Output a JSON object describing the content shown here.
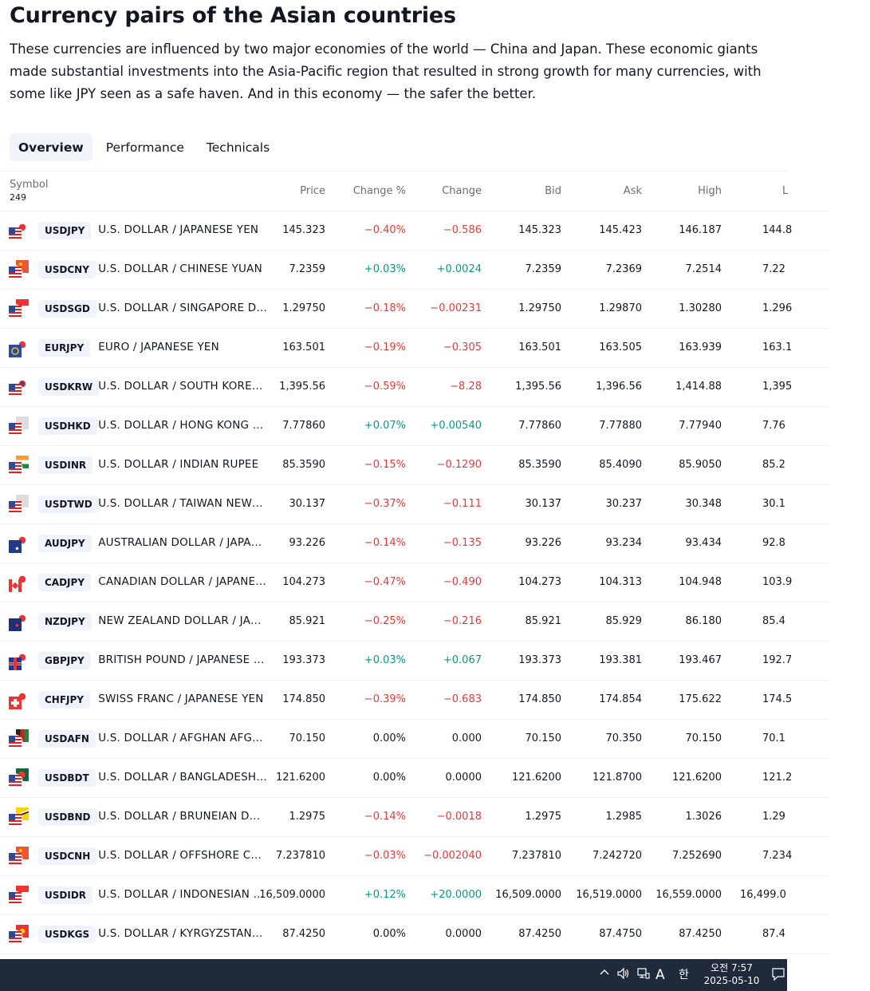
{
  "page": {
    "title": "Currency pairs of the Asian countries",
    "intro": "These currencies are influenced by two major economies of the world — China and Japan. These economic giants made substantial investments into the Asia-Pacific region that resulted in strong growth for many currencies, with some like JPY seen as a safe haven. And in this economy — the safer the better."
  },
  "tabs": [
    {
      "label": "Overview",
      "active": true
    },
    {
      "label": "Performance",
      "active": false
    },
    {
      "label": "Technicals",
      "active": false
    }
  ],
  "table": {
    "headers": {
      "symbol": "Symbol",
      "count": "249",
      "price": "Price",
      "change_pct": "Change %",
      "change": "Change",
      "bid": "Bid",
      "ask": "Ask",
      "high": "High",
      "low": "L"
    },
    "rows": [
      {
        "ticker": "USDJPY",
        "name": "U.S. DOLLAR / JAPANESE YEN",
        "price": "145.323",
        "change_pct": "−0.40%",
        "change": "−0.586",
        "bid": "145.323",
        "ask": "145.423",
        "high": "146.187",
        "low": "144.8",
        "dir": "neg",
        "flag_base": "us",
        "flag_quote": "jp"
      },
      {
        "ticker": "USDCNY",
        "name": "U.S. DOLLAR / CHINESE YUAN",
        "price": "7.2359",
        "change_pct": "+0.03%",
        "change": "+0.0024",
        "bid": "7.2359",
        "ask": "7.2369",
        "high": "7.2514",
        "low": "7.22",
        "dir": "pos",
        "flag_base": "us",
        "flag_quote": "cn"
      },
      {
        "ticker": "USDSGD",
        "name": "U.S. DOLLAR / SINGAPORE D…",
        "price": "1.29750",
        "change_pct": "−0.18%",
        "change": "−0.00231",
        "bid": "1.29750",
        "ask": "1.29870",
        "high": "1.30280",
        "low": "1.296",
        "dir": "neg",
        "flag_base": "us",
        "flag_quote": "sg"
      },
      {
        "ticker": "EURJPY",
        "name": "EURO / JAPANESE YEN",
        "price": "163.501",
        "change_pct": "−0.19%",
        "change": "−0.305",
        "bid": "163.501",
        "ask": "163.505",
        "high": "163.939",
        "low": "163.1",
        "dir": "neg",
        "flag_base": "eu",
        "flag_quote": "jp"
      },
      {
        "ticker": "USDKRW",
        "name": "U.S. DOLLAR / SOUTH KORE…",
        "price": "1,395.56",
        "change_pct": "−0.59%",
        "change": "−8.28",
        "bid": "1,395.56",
        "ask": "1,396.56",
        "high": "1,414.88",
        "low": "1,395",
        "dir": "neg",
        "flag_base": "us",
        "flag_quote": "kr"
      },
      {
        "ticker": "USDHKD",
        "name": "U.S. DOLLAR / HONG KONG …",
        "price": "7.77860",
        "change_pct": "+0.07%",
        "change": "+0.00540",
        "bid": "7.77860",
        "ask": "7.77880",
        "high": "7.77940",
        "low": "7.76",
        "dir": "pos",
        "flag_base": "us",
        "flag_quote": "hk"
      },
      {
        "ticker": "USDINR",
        "name": "U.S. DOLLAR / INDIAN RUPEE",
        "price": "85.3590",
        "change_pct": "−0.15%",
        "change": "−0.1290",
        "bid": "85.3590",
        "ask": "85.4090",
        "high": "85.9050",
        "low": "85.2",
        "dir": "neg",
        "flag_base": "us",
        "flag_quote": "in"
      },
      {
        "ticker": "USDTWD",
        "name": "U.S. DOLLAR / TAIWAN NEW…",
        "price": "30.137",
        "change_pct": "−0.37%",
        "change": "−0.111",
        "bid": "30.137",
        "ask": "30.237",
        "high": "30.348",
        "low": "30.1",
        "dir": "neg",
        "flag_base": "us",
        "flag_quote": "tw"
      },
      {
        "ticker": "AUDJPY",
        "name": "AUSTRALIAN DOLLAR / JAPA…",
        "price": "93.226",
        "change_pct": "−0.14%",
        "change": "−0.135",
        "bid": "93.226",
        "ask": "93.234",
        "high": "93.434",
        "low": "92.8",
        "dir": "neg",
        "flag_base": "au",
        "flag_quote": "jp"
      },
      {
        "ticker": "CADJPY",
        "name": "CANADIAN DOLLAR / JAPANE…",
        "price": "104.273",
        "change_pct": "−0.47%",
        "change": "−0.490",
        "bid": "104.273",
        "ask": "104.313",
        "high": "104.948",
        "low": "103.9",
        "dir": "neg",
        "flag_base": "ca",
        "flag_quote": "jp"
      },
      {
        "ticker": "NZDJPY",
        "name": "NEW ZEALAND DOLLAR / JA…",
        "price": "85.921",
        "change_pct": "−0.25%",
        "change": "−0.216",
        "bid": "85.921",
        "ask": "85.929",
        "high": "86.180",
        "low": "85.4",
        "dir": "neg",
        "flag_base": "nz",
        "flag_quote": "jp"
      },
      {
        "ticker": "GBPJPY",
        "name": "BRITISH POUND / JAPANESE …",
        "price": "193.373",
        "change_pct": "+0.03%",
        "change": "+0.067",
        "bid": "193.373",
        "ask": "193.381",
        "high": "193.467",
        "low": "192.7",
        "dir": "pos",
        "flag_base": "gb",
        "flag_quote": "jp"
      },
      {
        "ticker": "CHFJPY",
        "name": "SWISS FRANC / JAPANESE YEN",
        "price": "174.850",
        "change_pct": "−0.39%",
        "change": "−0.683",
        "bid": "174.850",
        "ask": "174.854",
        "high": "175.622",
        "low": "174.5",
        "dir": "neg",
        "flag_base": "ch",
        "flag_quote": "jp"
      },
      {
        "ticker": "USDAFN",
        "name": "U.S. DOLLAR / AFGHAN AFG…",
        "price": "70.150",
        "change_pct": "0.00%",
        "change": "0.000",
        "bid": "70.150",
        "ask": "70.350",
        "high": "70.150",
        "low": "70.1",
        "dir": "flat",
        "flag_base": "us",
        "flag_quote": "af"
      },
      {
        "ticker": "USDBDT",
        "name": "U.S. DOLLAR / BANGLADESH…",
        "price": "121.6200",
        "change_pct": "0.00%",
        "change": "0.0000",
        "bid": "121.6200",
        "ask": "121.8700",
        "high": "121.6200",
        "low": "121.2",
        "dir": "flat",
        "flag_base": "us",
        "flag_quote": "bd"
      },
      {
        "ticker": "USDBND",
        "name": "U.S. DOLLAR / BRUNEIAN D…",
        "price": "1.2975",
        "change_pct": "−0.14%",
        "change": "−0.0018",
        "bid": "1.2975",
        "ask": "1.2985",
        "high": "1.3026",
        "low": "1.29",
        "dir": "neg",
        "flag_base": "us",
        "flag_quote": "bn"
      },
      {
        "ticker": "USDCNH",
        "name": "U.S. DOLLAR / OFFSHORE C…",
        "price": "7.237810",
        "change_pct": "−0.03%",
        "change": "−0.002040",
        "bid": "7.237810",
        "ask": "7.242720",
        "high": "7.252690",
        "low": "7.234",
        "dir": "neg",
        "flag_base": "us",
        "flag_quote": "cn"
      },
      {
        "ticker": "USDIDR",
        "name": "U.S. DOLLAR / INDONESIAN …",
        "price": "16,509.0000",
        "change_pct": "+0.12%",
        "change": "+20.0000",
        "bid": "16,509.0000",
        "ask": "16,519.0000",
        "high": "16,559.0000",
        "low": "16,499.0",
        "dir": "pos",
        "flag_base": "us",
        "flag_quote": "id"
      },
      {
        "ticker": "USDKGS",
        "name": "U.S. DOLLAR / KYRGYZSTAN…",
        "price": "87.4250",
        "change_pct": "0.00%",
        "change": "0.0000",
        "bid": "87.4250",
        "ask": "87.4750",
        "high": "87.4250",
        "low": "87.4",
        "dir": "flat",
        "flag_base": "us",
        "flag_quote": "kg"
      }
    ]
  },
  "taskbar": {
    "time": "오전 7:57",
    "date": "2025-05-10",
    "ime_mode": "A",
    "ime_lang": "한",
    "icons": [
      "chevron-up-icon",
      "speaker-icon",
      "network-icon",
      "notification-icon"
    ]
  },
  "colors": {
    "negative": "#e03b3b",
    "positive": "#089981",
    "text": "#131722",
    "muted": "#6a6d78",
    "chip_bg": "#f0f3fa",
    "taskbar_bg": "#1f2a3a"
  }
}
